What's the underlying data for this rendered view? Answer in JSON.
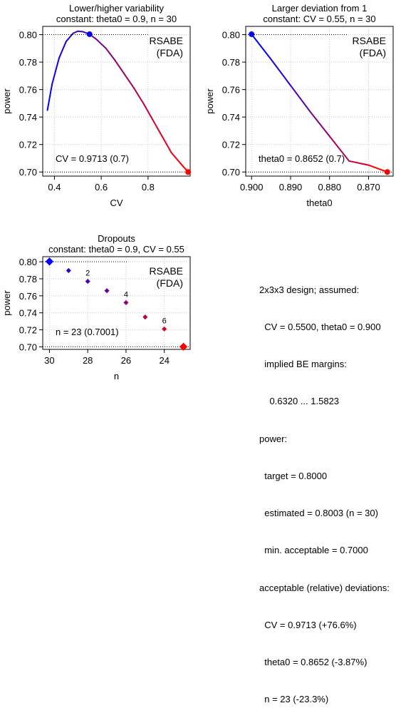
{
  "chart_data": [
    {
      "type": "line",
      "title_line1": "Lower/higher variability",
      "title_line2": "constant: theta0 = 0.9, n = 30",
      "xlabel": "CV",
      "ylabel": "power",
      "xlim": [
        0.35,
        0.98
      ],
      "ylim": [
        0.697,
        0.806
      ],
      "x_ticks": [
        0.4,
        0.6,
        0.8
      ],
      "x_tick_labels": [
        "0.4",
        "0.6",
        "0.8"
      ],
      "y_ticks": [
        0.7,
        0.72,
        0.74,
        0.76,
        0.78,
        0.8
      ],
      "y_tick_labels": [
        "0.70",
        "0.72",
        "0.74",
        "0.76",
        "0.78",
        "0.80"
      ],
      "curve": {
        "x": [
          0.37,
          0.39,
          0.42,
          0.45,
          0.48,
          0.5,
          0.52,
          0.55,
          0.58,
          0.62,
          0.66,
          0.7,
          0.74,
          0.78,
          0.82,
          0.86,
          0.9,
          0.94,
          0.9713
        ],
        "y": [
          0.745,
          0.764,
          0.783,
          0.795,
          0.801,
          0.8025,
          0.8022,
          0.8003,
          0.7965,
          0.79,
          0.781,
          0.771,
          0.761,
          0.75,
          0.738,
          0.726,
          0.714,
          0.706,
          0.7
        ]
      },
      "reference_line": 0.8,
      "limit_line": 0.7,
      "start_point": {
        "x": 0.55,
        "y": 0.8003
      },
      "end_point": {
        "x": 0.9713,
        "y": 0.7
      },
      "legend": [
        "RSABE",
        "(FDA)"
      ],
      "annotation": "CV = 0.9713 (0.7)"
    },
    {
      "type": "line",
      "title_line1": "Larger deviation from 1",
      "title_line2": "constant: CV = 0.55, n = 30",
      "xlabel": "theta0",
      "ylabel": "power",
      "x_reversed": true,
      "xlim": [
        0.9015,
        0.8637
      ],
      "ylim": [
        0.697,
        0.806
      ],
      "x_ticks": [
        0.9,
        0.89,
        0.88,
        0.87
      ],
      "x_tick_labels": [
        "0.900",
        "0.890",
        "0.880",
        "0.870"
      ],
      "y_ticks": [
        0.7,
        0.72,
        0.74,
        0.76,
        0.78,
        0.8
      ],
      "y_tick_labels": [
        "0.70",
        "0.72",
        "0.74",
        "0.76",
        "0.78",
        "0.80"
      ],
      "curve": {
        "x": [
          0.9,
          0.895,
          0.89,
          0.885,
          0.88,
          0.875,
          0.87,
          0.8652
        ],
        "y": [
          0.8003,
          0.782,
          0.763,
          0.744,
          0.726,
          0.708,
          0.705,
          0.7
        ]
      },
      "reference_line": 0.8,
      "limit_line": 0.7,
      "start_point": {
        "x": 0.9,
        "y": 0.8003
      },
      "end_point": {
        "x": 0.8652,
        "y": 0.7
      },
      "legend": [
        "RSABE",
        "(FDA)"
      ],
      "annotation": "theta0 = 0.8652 (0.7)"
    },
    {
      "type": "scatter",
      "title_line1": "Dropouts",
      "title_line2": "constant: theta0 = 0.9, CV = 0.55",
      "xlabel": "n",
      "ylabel": "power",
      "x_reversed": true,
      "xlim": [
        30.35,
        22.65
      ],
      "ylim": [
        0.697,
        0.806
      ],
      "x_ticks": [
        30,
        28,
        26,
        24
      ],
      "x_tick_labels": [
        "30",
        "28",
        "26",
        "24"
      ],
      "y_ticks": [
        0.7,
        0.72,
        0.74,
        0.76,
        0.78,
        0.8
      ],
      "y_tick_labels": [
        "0.70",
        "0.72",
        "0.74",
        "0.76",
        "0.78",
        "0.80"
      ],
      "points": {
        "x": [
          30,
          29,
          28,
          27,
          26,
          25,
          24,
          23
        ],
        "y": [
          0.8003,
          0.7897,
          0.777,
          0.766,
          0.752,
          0.735,
          0.721,
          0.7001
        ]
      },
      "point_labels": [
        {
          "x": 28,
          "y": 0.777,
          "text": "2"
        },
        {
          "x": 26,
          "y": 0.752,
          "text": "4"
        },
        {
          "x": 24,
          "y": 0.721,
          "text": "6"
        }
      ],
      "reference_line": 0.8,
      "limit_line": 0.7,
      "legend": [
        "RSABE",
        "(FDA)"
      ],
      "annotation": "n = 23 (0.7001)"
    }
  ],
  "info_panel": {
    "lines": [
      "2x3x3 design; assumed:",
      "  CV = 0.5500, theta0 = 0.900",
      "  implied BE margins:",
      "    0.6320 ... 1.5823",
      "power:",
      "  target = 0.8000",
      "  estimated = 0.8003 (n = 30)",
      "  min. acceptable = 0.7000",
      "acceptable (relative) deviations:",
      "  CV = 0.9713 (+76.6%)",
      "  theta0 = 0.8652 (-3.87%)",
      "  n = 23 (-23.3%)"
    ]
  },
  "colors": {
    "start": "#0000ff",
    "end": "#ff0000",
    "grid": "#c8c8c8"
  }
}
